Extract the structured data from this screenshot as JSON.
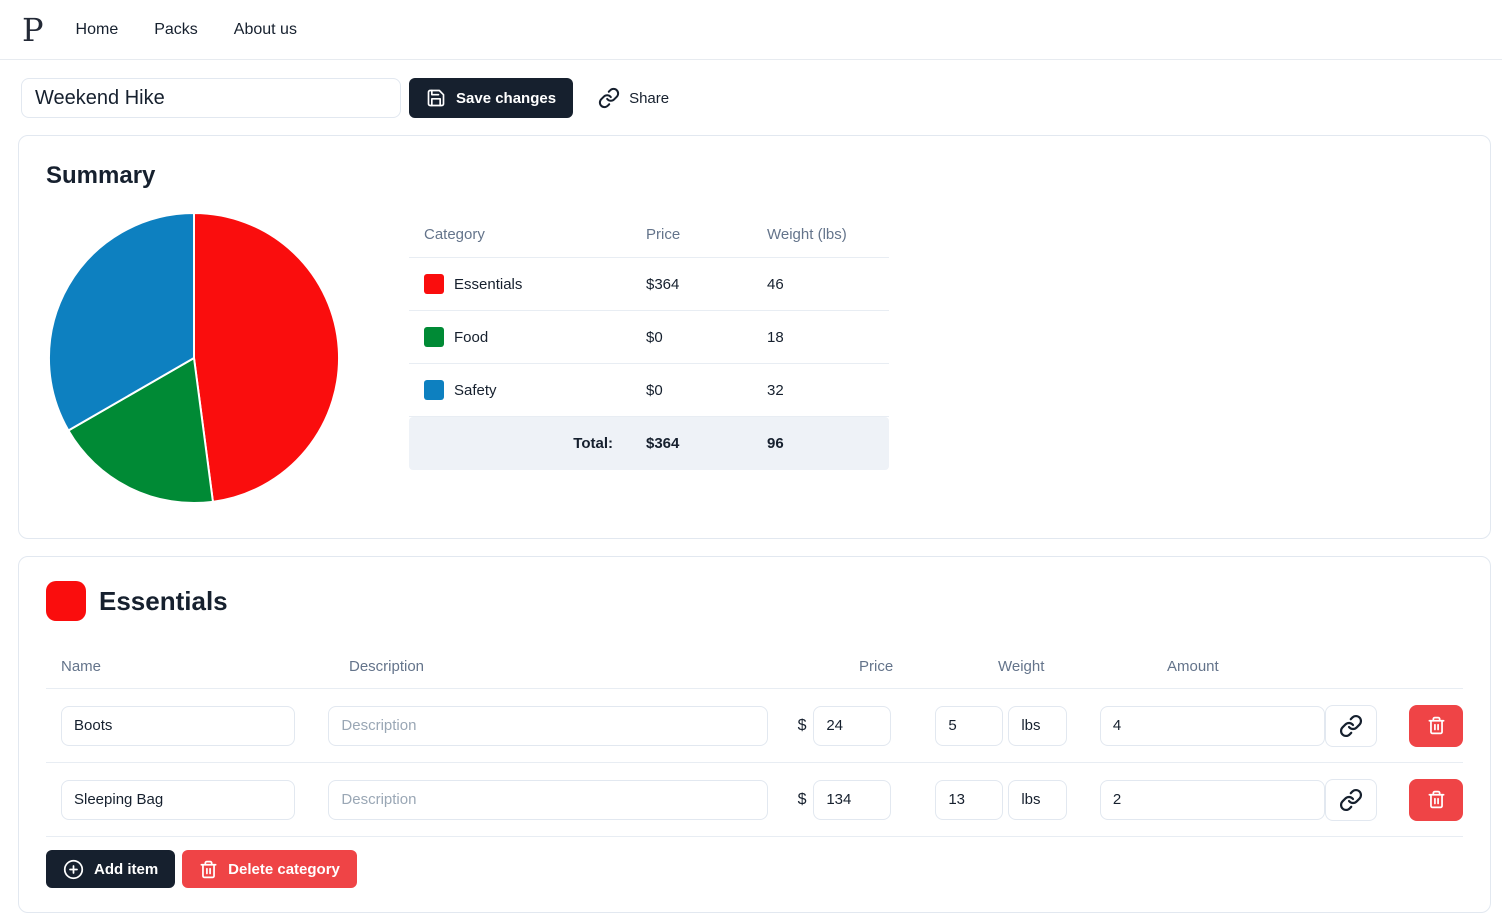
{
  "nav": {
    "logo": "P",
    "items": [
      {
        "label": "Home"
      },
      {
        "label": "Packs"
      },
      {
        "label": "About us"
      }
    ]
  },
  "header": {
    "pack_name_value": "Weekend Hike",
    "save_label": "Save changes",
    "share_label": "Share"
  },
  "summary": {
    "title": "Summary",
    "table": {
      "headers": {
        "category": "Category",
        "price": "Price",
        "weight": "Weight (lbs)"
      },
      "rows": [
        {
          "label": "Essentials",
          "color": "#fa0d0d",
          "price": "$364",
          "weight": "46"
        },
        {
          "label": "Food",
          "color": "#008a35",
          "price": "$0",
          "weight": "18"
        },
        {
          "label": "Safety",
          "color": "#0d80c0",
          "price": "$0",
          "weight": "32"
        }
      ],
      "total": {
        "label": "Total:",
        "price": "$364",
        "weight": "96"
      }
    }
  },
  "chart_data": {
    "type": "pie",
    "title": "Summary",
    "categories": [
      "Essentials",
      "Food",
      "Safety"
    ],
    "values": [
      46,
      18,
      32
    ],
    "colors": [
      "#fa0d0d",
      "#008a35",
      "#0d80c0"
    ],
    "units": "lbs",
    "start_angle_deg": 0,
    "direction": "clockwise",
    "legend_position": "table-right"
  },
  "category_section": {
    "name": "Essentials",
    "color": "#fa0d0d",
    "table_headers": {
      "name": "Name",
      "description": "Description",
      "price": "Price",
      "weight": "Weight",
      "amount": "Amount"
    },
    "currency_symbol": "$",
    "description_placeholder": "Description",
    "items": [
      {
        "name": "Boots",
        "price": "24",
        "weight": "5",
        "unit": "lbs",
        "amount": "4"
      },
      {
        "name": "Sleeping Bag",
        "price": "134",
        "weight": "13",
        "unit": "lbs",
        "amount": "2"
      }
    ],
    "add_item_label": "Add item",
    "delete_category_label": "Delete category"
  },
  "colors": {
    "primary_dark": "#16202e",
    "danger_red": "#ef4446",
    "muted_text": "#64748b",
    "border": "#e2e8f0",
    "total_row_bg": "#eef2f7"
  }
}
